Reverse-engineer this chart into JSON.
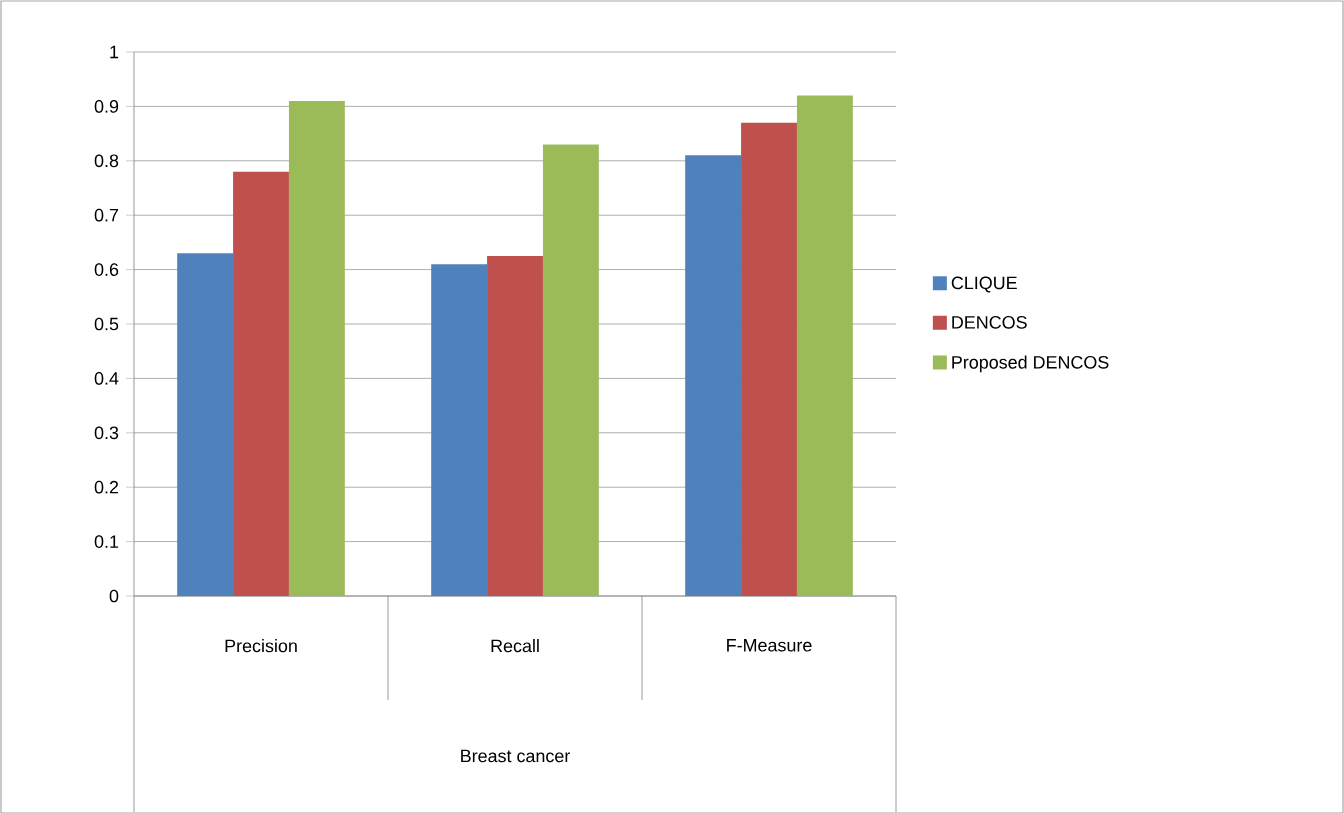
{
  "chart_data": {
    "type": "bar",
    "annotations": [
      "Breast cancer"
    ],
    "categories": [
      "Precision",
      "Recall",
      "F-Measure"
    ],
    "series": [
      {
        "name": "CLIQUE",
        "color": "#4f81bd",
        "values": [
          0.63,
          0.61,
          0.81
        ]
      },
      {
        "name": "DENCOS",
        "color": "#c0504d",
        "values": [
          0.78,
          0.625,
          0.87
        ]
      },
      {
        "name": "Proposed DENCOS",
        "color": "#9bbb59",
        "values": [
          0.91,
          0.83,
          0.92
        ]
      }
    ],
    "ylim": [
      0,
      1
    ],
    "yticks": [
      0,
      0.1,
      0.2,
      0.3,
      0.4,
      0.5,
      0.6,
      0.7,
      0.8,
      0.9,
      1
    ],
    "grid": "y",
    "legend": "right"
  }
}
